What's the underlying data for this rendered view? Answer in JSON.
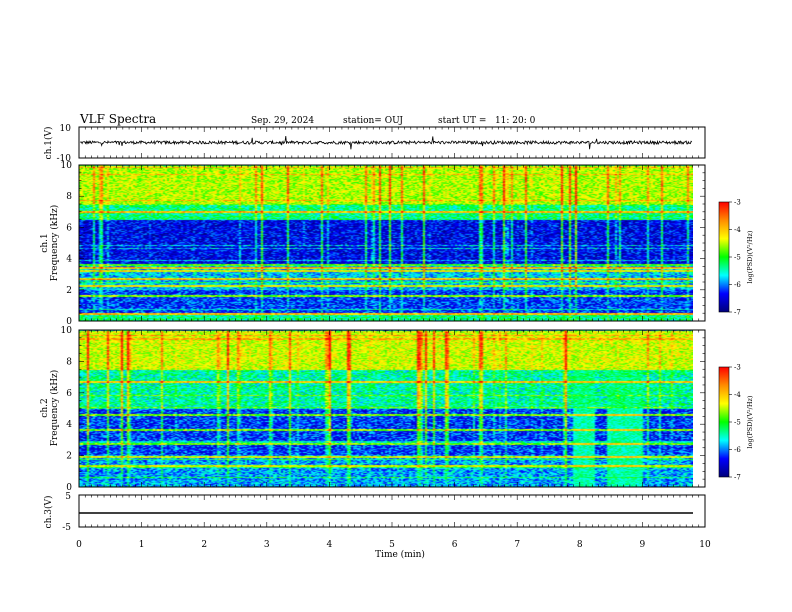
{
  "header": {
    "title": "VLF Spectra",
    "date": "Sep. 29, 2024",
    "station": "station= OUJ",
    "start_ut": "start UT =   11: 20: 0"
  },
  "panels": {
    "ch1_wave": {
      "ylabel": "ch.1(V)",
      "yticks": [
        "10",
        "-10"
      ]
    },
    "ch1_spec": {
      "ylabel_ch": "ch.1",
      "ylabel": "Frequency (kHz)",
      "yticks": [
        "0",
        "2",
        "4",
        "6",
        "8",
        "10"
      ]
    },
    "ch2_spec": {
      "ylabel_ch": "ch.2",
      "ylabel": "Frequency (kHz)",
      "yticks": [
        "0",
        "2",
        "4",
        "6",
        "8",
        "10"
      ]
    },
    "ch3_wave": {
      "ylabel": "ch.3(V)",
      "yticks": [
        "5",
        "-5"
      ]
    }
  },
  "xaxis": {
    "label": "Time (min)",
    "ticks": [
      "0",
      "1",
      "2",
      "3",
      "4",
      "5",
      "6",
      "7",
      "8",
      "9",
      "10"
    ]
  },
  "colorbar": {
    "label": "log(PSD)(V²/Hz)",
    "ticks": [
      "-3",
      "-4",
      "-5",
      "-6",
      "-7"
    ],
    "colors": [
      "#ff0000",
      "#ff8c00",
      "#ffff00",
      "#00ff00",
      "#00ffff",
      "#0000ff",
      "#00007a"
    ]
  },
  "chart_data": [
    {
      "type": "line",
      "title": "VLF Spectra",
      "ylabel": "ch.1(V)",
      "xlabel": "Time (min)",
      "xlim": [
        0,
        10
      ],
      "ylim": [
        -10,
        10
      ],
      "x_data_extent": [
        0,
        9.8
      ],
      "description_values": {
        "baseline": 0,
        "noise_amplitude": 1
      }
    },
    {
      "type": "heatmap",
      "ylabel": "Frequency (kHz)",
      "channel": "ch.1",
      "xlim": [
        0,
        10
      ],
      "ylim": [
        0,
        10
      ],
      "x_data_extent": [
        0,
        9.8
      ],
      "zlabel": "log(PSD)(V²/Hz)",
      "zlim": [
        -7,
        -3
      ],
      "band_levels": [
        {
          "f_khz": [
            0,
            0.5
          ],
          "log_psd": -5.5
        },
        {
          "f_khz": [
            0.5,
            2
          ],
          "log_psd": -6.3
        },
        {
          "f_khz": [
            2,
            3.5
          ],
          "log_psd": -5.9
        },
        {
          "f_khz": [
            3.5,
            6.5
          ],
          "log_psd": -6.5
        },
        {
          "f_khz": [
            6.5,
            7.5
          ],
          "log_psd": -5.5
        },
        {
          "f_khz": [
            7.5,
            10
          ],
          "log_psd": -4.7
        }
      ],
      "tones_khz": [
        0.4,
        1.6,
        2.2,
        2.7,
        3.2,
        3.4,
        3.6,
        7.0
      ]
    },
    {
      "type": "heatmap",
      "ylabel": "Frequency (kHz)",
      "channel": "ch.2",
      "xlim": [
        0,
        10
      ],
      "ylim": [
        0,
        10
      ],
      "x_data_extent": [
        0,
        9.8
      ],
      "zlabel": "log(PSD)(V²/Hz)",
      "zlim": [
        -7,
        -3
      ],
      "band_levels": [
        {
          "f_khz": [
            0,
            2
          ],
          "log_psd": -6.0
        },
        {
          "f_khz": [
            2,
            5
          ],
          "log_psd": -6.3
        },
        {
          "f_khz": [
            5,
            7.5
          ],
          "log_psd": -5.6
        },
        {
          "f_khz": [
            7.5,
            10
          ],
          "log_psd": -4.6
        }
      ],
      "tones_khz": [
        1.3,
        1.9,
        2.7,
        3.6,
        4.6,
        6.7
      ],
      "broadband_interval_min": [
        7.9,
        9.0
      ]
    },
    {
      "type": "line",
      "ylabel": "ch.3(V)",
      "xlabel": "Time (min)",
      "xlim": [
        0,
        10
      ],
      "ylim": [
        -5,
        5
      ],
      "x_data_extent": [
        0,
        9.8
      ],
      "description_values": {
        "baseline": 0
      }
    }
  ]
}
